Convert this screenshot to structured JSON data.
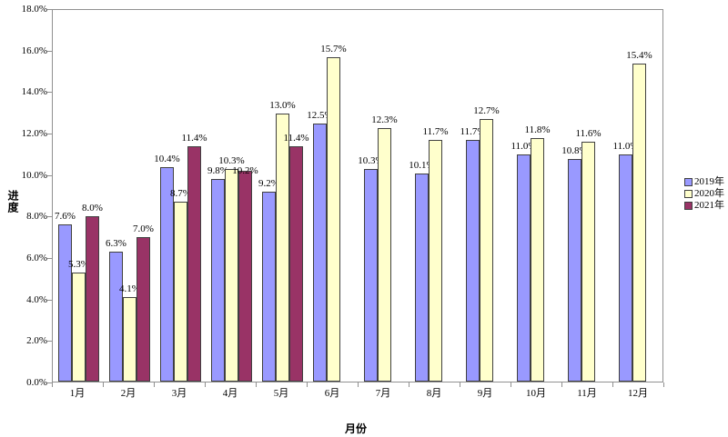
{
  "chart_data": {
    "type": "bar",
    "title": "",
    "ylabel": "进度",
    "xlabel": "月份",
    "categories": [
      "1月",
      "2月",
      "3月",
      "4月",
      "5月",
      "6月",
      "7月",
      "8月",
      "9月",
      "10月",
      "11月",
      "12月"
    ],
    "series": [
      {
        "name": "2019年",
        "color": "#9999FF",
        "border_color": "#404040",
        "values": [
          7.6,
          6.3,
          10.4,
          9.8,
          9.2,
          12.5,
          10.3,
          10.1,
          11.7,
          11.0,
          10.8,
          11.0
        ]
      },
      {
        "name": "2020年",
        "color": "#FFFFCC",
        "border_color": "#404040",
        "values": [
          5.3,
          4.1,
          8.7,
          10.3,
          13.0,
          15.7,
          12.3,
          11.7,
          12.7,
          11.8,
          11.6,
          15.4
        ]
      },
      {
        "name": "2021年",
        "color": "#993366",
        "border_color": "#404040",
        "values": [
          8.0,
          7.0,
          11.4,
          10.2,
          11.4,
          null,
          null,
          null,
          null,
          null,
          null,
          null
        ]
      }
    ],
    "ylim": [
      0,
      18
    ],
    "ytick_step": 2,
    "ytick_labels": [
      "0.0%",
      "2.0%",
      "4.0%",
      "6.0%",
      "8.0%",
      "10.0%",
      "12.0%",
      "14.0%",
      "16.0%",
      "18.0%"
    ],
    "data_labels": true,
    "data_label_suffix": "%",
    "legend_position": "right",
    "grid": false,
    "background_color": "#FFFFFF",
    "plot_border_color": "#909090",
    "axis_tick_color": "#909090"
  }
}
